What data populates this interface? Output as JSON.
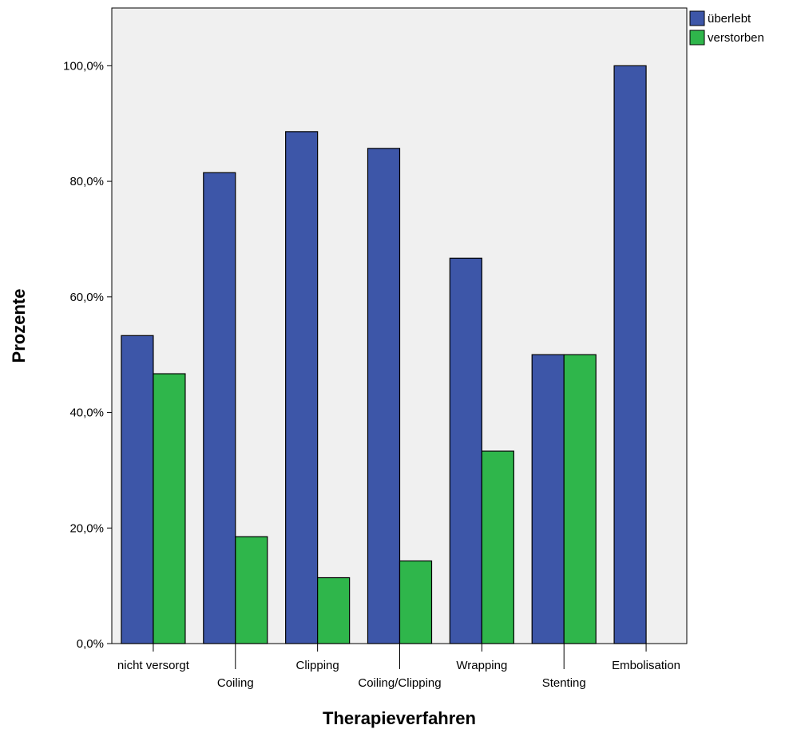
{
  "chart_data": {
    "type": "bar",
    "title": "",
    "xlabel": "Therapieverfahren",
    "ylabel": "Prozente",
    "categories": [
      "nicht versorgt",
      "Coiling",
      "Clipping",
      "Coiling/Clipping",
      "Wrapping",
      "Stenting",
      "Embolisation"
    ],
    "series": [
      {
        "name": "überlebt",
        "color": "#3d56a8",
        "values": [
          53.3,
          81.5,
          88.6,
          85.7,
          66.7,
          50.0,
          100.0
        ]
      },
      {
        "name": "verstorben",
        "color": "#2fb64b",
        "values": [
          46.7,
          18.5,
          11.4,
          14.3,
          33.3,
          50.0,
          0.0
        ]
      }
    ],
    "ylim": [
      0,
      110
    ],
    "yticks": [
      0,
      20,
      40,
      60,
      80,
      100
    ],
    "ytick_labels": [
      "0,0%",
      "20,0%",
      "40,0%",
      "60,0%",
      "80,0%",
      "100,0%"
    ],
    "grid": false,
    "legend_position": "top-right outside",
    "plot_background": "#f0f0f0"
  }
}
